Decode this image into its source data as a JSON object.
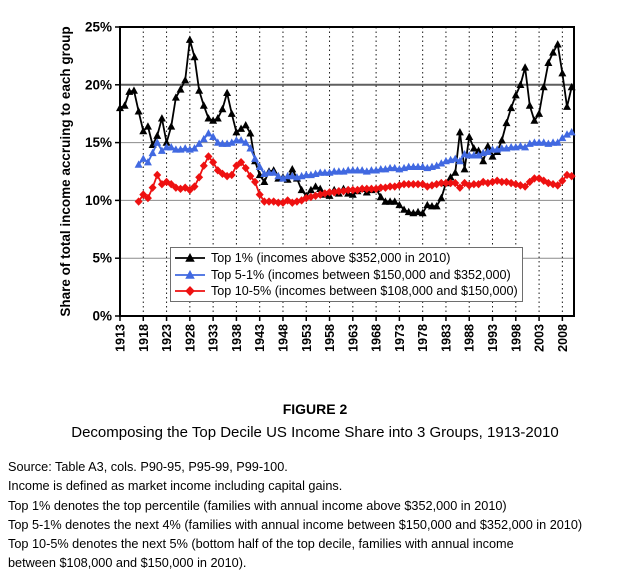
{
  "chart_data": {
    "type": "line",
    "ylabel": "Share of total income accruing to each group",
    "ylim": [
      0,
      25
    ],
    "yticks": [
      0,
      5,
      10,
      15,
      20,
      25
    ],
    "ytick_suffix": "%",
    "x_range": [
      1913,
      2010.5
    ],
    "xticks": [
      1913,
      1918,
      1923,
      1928,
      1933,
      1938,
      1943,
      1948,
      1953,
      1958,
      1963,
      1968,
      1973,
      1978,
      1983,
      1988,
      1993,
      1998,
      2003,
      2008
    ],
    "grid": {
      "horizontal": "solid-gray",
      "vertical": "dotted-black",
      "emphasized_y": 20
    },
    "legend_position": "inside-bottom-center",
    "series": [
      {
        "name": "Top 1% (incomes above $352,000 in 2010)",
        "color": "#000000",
        "marker": "triangle",
        "start_year": 1913,
        "values": [
          18.0,
          18.2,
          19.4,
          19.5,
          17.7,
          16.0,
          16.4,
          14.8,
          15.6,
          17.1,
          15.0,
          16.4,
          18.9,
          19.6,
          20.4,
          23.9,
          22.4,
          19.5,
          18.2,
          17.1,
          16.9,
          17.1,
          17.9,
          19.3,
          17.5,
          15.9,
          16.2,
          16.5,
          15.8,
          13.4,
          12.2,
          11.6,
          12.5,
          12.6,
          11.9,
          12.0,
          11.8,
          12.7,
          11.9,
          10.9,
          10.4,
          10.9,
          11.2,
          11.0,
          10.5,
          10.4,
          10.9,
          10.6,
          11.0,
          10.6,
          10.5,
          10.8,
          11.0,
          10.7,
          10.9,
          11.0,
          10.3,
          9.9,
          9.9,
          9.9,
          9.6,
          9.2,
          9.0,
          8.9,
          9.0,
          8.9,
          9.6,
          9.5,
          9.5,
          10.2,
          11.5,
          12.0,
          12.4,
          15.9,
          12.7,
          15.5,
          14.5,
          14.3,
          13.4,
          14.7,
          13.8,
          14.2,
          15.2,
          16.7,
          18.0,
          19.1,
          20.0,
          21.5,
          18.2,
          16.9,
          17.5,
          19.8,
          21.9,
          22.8,
          23.5,
          21.0,
          18.1,
          19.8
        ]
      },
      {
        "name": "Top 5-1% (incomes between $150,000 and $352,000)",
        "color": "#4169E1",
        "marker": "triangle",
        "start_year": 1917,
        "values": [
          13.1,
          13.6,
          13.3,
          14.1,
          15.0,
          14.3,
          14.6,
          14.6,
          14.4,
          14.4,
          14.5,
          14.4,
          14.5,
          14.9,
          15.3,
          15.8,
          15.5,
          15.0,
          14.9,
          14.9,
          15.0,
          15.2,
          15.2,
          15.0,
          14.5,
          13.6,
          12.9,
          12.3,
          12.4,
          12.4,
          12.1,
          11.9,
          12.1,
          12.1,
          12.0,
          12.1,
          12.2,
          12.2,
          12.3,
          12.4,
          12.4,
          12.4,
          12.5,
          12.5,
          12.5,
          12.6,
          12.6,
          12.6,
          12.6,
          12.5,
          12.6,
          12.6,
          12.7,
          12.7,
          12.8,
          12.8,
          12.7,
          12.8,
          12.9,
          12.9,
          12.9,
          12.9,
          12.8,
          12.9,
          13.0,
          13.2,
          13.4,
          13.5,
          13.6,
          13.4,
          14.0,
          13.9,
          13.9,
          13.9,
          14.1,
          14.2,
          14.4,
          14.4,
          14.5,
          14.5,
          14.6,
          14.6,
          14.7,
          14.6,
          14.9,
          15.0,
          15.0,
          15.0,
          14.9,
          15.0,
          15.0,
          15.4,
          15.7,
          15.9
        ]
      },
      {
        "name": "Top 10-5% (incomes between $108,000 and $150,000)",
        "color": "#EE1111",
        "marker": "diamond",
        "start_year": 1917,
        "values": [
          9.9,
          10.5,
          10.2,
          11.1,
          12.2,
          11.4,
          11.6,
          11.4,
          11.1,
          11.0,
          11.1,
          10.9,
          11.2,
          12.0,
          13.0,
          13.8,
          13.3,
          12.6,
          12.3,
          12.1,
          12.2,
          13.0,
          13.3,
          12.8,
          12.1,
          11.6,
          10.5,
          9.9,
          9.9,
          9.9,
          9.8,
          9.8,
          10.0,
          9.8,
          9.9,
          10.0,
          10.2,
          10.3,
          10.4,
          10.5,
          10.6,
          10.7,
          10.7,
          10.8,
          10.8,
          10.9,
          10.9,
          10.9,
          11.0,
          11.0,
          11.0,
          11.0,
          11.1,
          11.1,
          11.2,
          11.2,
          11.3,
          11.4,
          11.4,
          11.4,
          11.4,
          11.4,
          11.2,
          11.3,
          11.4,
          11.5,
          11.5,
          11.5,
          11.5,
          11.1,
          11.5,
          11.3,
          11.4,
          11.4,
          11.6,
          11.5,
          11.6,
          11.7,
          11.6,
          11.6,
          11.5,
          11.4,
          11.3,
          11.2,
          11.6,
          11.9,
          11.9,
          11.7,
          11.5,
          11.4,
          11.3,
          11.7,
          12.2,
          12.1
        ]
      }
    ]
  },
  "caption": {
    "label": "FIGURE 2",
    "title": "Decomposing the Top Decile US Income Share into 3 Groups, 1913-2010"
  },
  "notes": [
    "Source: Table A3, cols. P90-95, P95-99, P99-100.",
    "Income is defined as market income including capital gains.",
    "Top 1% denotes the top percentile (families with annual income above $352,000 in 2010)",
    "Top 5-1% denotes the next 4% (families with annual income between $150,000 and $352,000 in 2010)",
    "Top 10-5% denotes the next 5% (bottom half of the top decile, families with annual income",
    "between $108,000 and $150,000 in 2010)."
  ]
}
